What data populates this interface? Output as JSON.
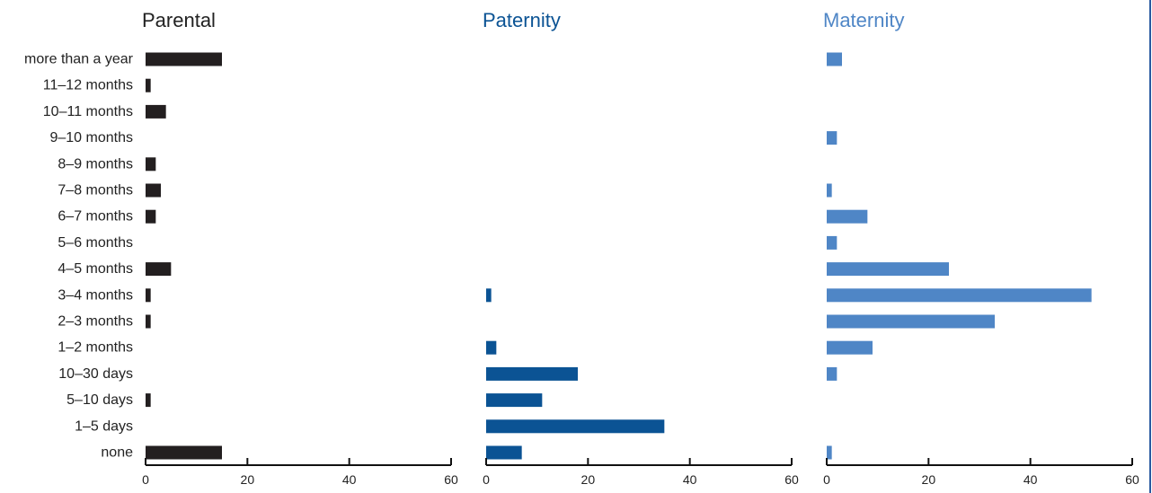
{
  "chart_data": {
    "type": "bar",
    "orientation": "horizontal",
    "categories": [
      "more than a year",
      "11–12 months",
      "10–11 months",
      "9–10 months",
      "8–9 months",
      "7–8 months",
      "6–7 months",
      "5–6 months",
      "4–5 months",
      "3–4 months",
      "2–3 months",
      "1–2 months",
      "10–30 days",
      "5–10 days",
      "1–5 days",
      "none"
    ],
    "xlim": [
      0,
      60
    ],
    "xticks": [
      "0",
      "20",
      "40",
      "60"
    ],
    "grid": false,
    "legend": "none",
    "panels": [
      {
        "title": "Parental",
        "title_color": "#222222",
        "color": "#231f20",
        "values": [
          15,
          1,
          4,
          0,
          2,
          3,
          2,
          0,
          5,
          1,
          1,
          0,
          0,
          1,
          0,
          15
        ]
      },
      {
        "title": "Paternity",
        "title_color": "#0b5394",
        "color": "#0b5394",
        "values": [
          0,
          0,
          0,
          0,
          0,
          0,
          0,
          0,
          0,
          1,
          0,
          2,
          18,
          11,
          35,
          7
        ]
      },
      {
        "title": "Maternity",
        "title_color": "#4f86c6",
        "color": "#4f86c6",
        "values": [
          3,
          0,
          0,
          2,
          0,
          1,
          8,
          2,
          24,
          52,
          33,
          9,
          2,
          0,
          0,
          1
        ]
      }
    ]
  }
}
